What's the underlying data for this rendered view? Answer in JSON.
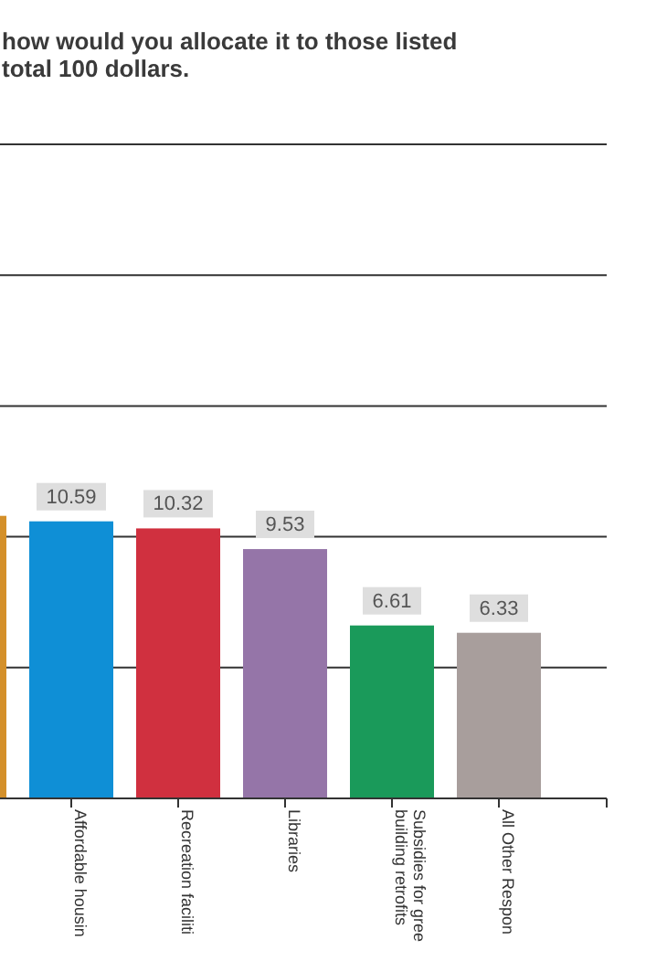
{
  "chart_data": {
    "type": "bar",
    "title": "how would you allocate it to those listed\ntotal 100 dollars.",
    "categories": [
      null,
      "Affordable housin",
      "Recreation faciliti",
      "Libraries",
      "Subsidies for gree\nbuilding retrofits",
      "All Other Respon"
    ],
    "values": [
      10.8,
      10.59,
      10.32,
      9.53,
      6.61,
      6.33
    ],
    "value_labels": [
      null,
      "10.59",
      "10.32",
      "9.53",
      "6.61",
      "6.33"
    ],
    "colors": [
      "#d4902a",
      "#0f8fd6",
      "#d0303f",
      "#9575a8",
      "#1a9a5a",
      "#a89e9c"
    ],
    "ylim": [
      0,
      25
    ],
    "yticks": [
      {
        "value": 0,
        "label": null
      },
      {
        "value": 5,
        "label": null
      },
      {
        "value": 10,
        "label": null
      },
      {
        "value": 15,
        "label": null
      },
      {
        "value": 20,
        "label": null
      },
      {
        "value": 25,
        "label": null
      }
    ],
    "tick_labels": "x",
    "grid": "y"
  }
}
